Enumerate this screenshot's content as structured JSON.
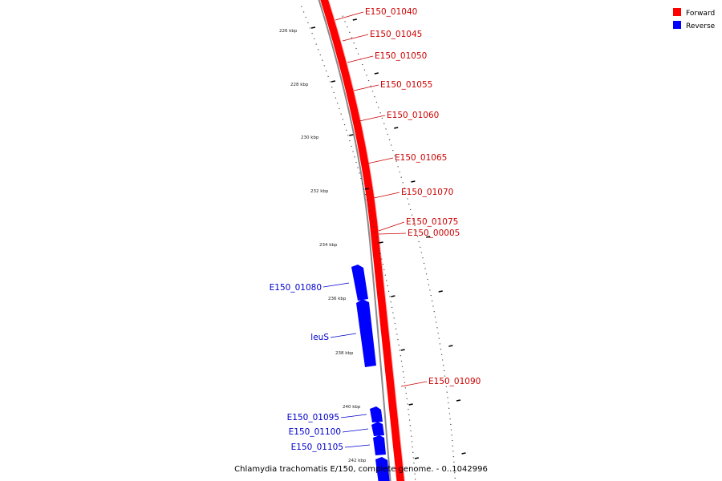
{
  "colors": {
    "forward": "#ff0000",
    "forward_dark": "#c40000",
    "reverse": "#0000ff",
    "reverse_dark": "#0000b0",
    "forward_label": "#cc0000",
    "reverse_label": "#0000cc",
    "backbone": "#8a8a8a"
  },
  "legend": [
    {
      "label": "Forward",
      "color": "#ff0000"
    },
    {
      "label": "Reverse",
      "color": "#0000ff"
    }
  ],
  "caption": "Chlamydia trachomatis E/150, complete genome. - 0..1042996",
  "tick_labels": [
    "226 kbp",
    "228 kbp",
    "230 kbp",
    "232 kbp",
    "234 kbp",
    "236 kbp",
    "238 kbp",
    "240 kbp",
    "242 kbp"
  ],
  "forward_genes": [
    "E150_01040",
    "E150_01045",
    "E150_01050",
    "E150_01055",
    "E150_01060",
    "E150_01065",
    "E150_01070",
    "E150_01075",
    "E150_00005",
    "E150_01090"
  ],
  "reverse_genes": [
    "E150_01080",
    "leuS",
    "E150_01095",
    "E150_01100",
    "E150_01105"
  ]
}
